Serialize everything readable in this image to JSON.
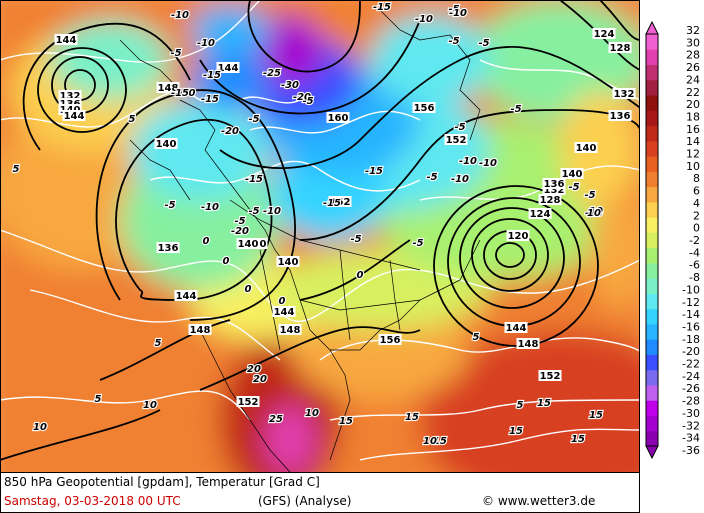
{
  "colors": {
    "scale": [
      "#8a00b0",
      "#a400d0",
      "#c000e8",
      "#c060f0",
      "#7a6cf0",
      "#3a50ff",
      "#1e8cff",
      "#28b4ff",
      "#34d4ff",
      "#5ee8f0",
      "#7af0c8",
      "#86f0a0",
      "#a8f070",
      "#d8f060",
      "#f8f060",
      "#fcd050",
      "#f8a840",
      "#f08030",
      "#e86020",
      "#d84020",
      "#c02818",
      "#a81818",
      "#901010",
      "#a02040",
      "#c03070",
      "#e040b0",
      "#f060d0"
    ]
  },
  "legend": {
    "ticks": [
      "32",
      "30",
      "28",
      "26",
      "24",
      "22",
      "20",
      "18",
      "16",
      "14",
      "12",
      "10",
      "8",
      "6",
      "4",
      "2",
      "0",
      "-2",
      "-4",
      "-6",
      "-8",
      "-10",
      "-12",
      "-14",
      "-16",
      "-18",
      "-20",
      "-22",
      "-24",
      "-26",
      "-28",
      "-30",
      "-32",
      "-34",
      "-36"
    ]
  },
  "map": {
    "geopotential_labels": [
      {
        "text": "144"
      },
      {
        "text": "132"
      },
      {
        "text": "136"
      },
      {
        "text": "140"
      },
      {
        "text": "144"
      },
      {
        "text": "144"
      },
      {
        "text": "148"
      },
      {
        "text": "140"
      },
      {
        "text": "140"
      },
      {
        "text": "136"
      },
      {
        "text": "140"
      },
      {
        "text": "144"
      },
      {
        "text": "144"
      },
      {
        "text": "148"
      },
      {
        "text": "148"
      },
      {
        "text": "160"
      },
      {
        "text": "156"
      },
      {
        "text": "152"
      },
      {
        "text": "152"
      },
      {
        "text": "156"
      },
      {
        "text": "120"
      },
      {
        "text": "124"
      },
      {
        "text": "128"
      },
      {
        "text": "132"
      },
      {
        "text": "136"
      },
      {
        "text": "140"
      },
      {
        "text": "144"
      },
      {
        "text": "148"
      },
      {
        "text": "152"
      },
      {
        "text": "152"
      },
      {
        "text": "124"
      },
      {
        "text": "128"
      },
      {
        "text": "132"
      },
      {
        "text": "136"
      },
      {
        "text": "140"
      },
      {
        "text": "140"
      },
      {
        "text": "136"
      }
    ],
    "temperature_labels": [
      {
        "text": "-10"
      },
      {
        "text": "-10"
      },
      {
        "text": "-5"
      },
      {
        "text": "-15"
      },
      {
        "text": "-25"
      },
      {
        "text": "-30"
      },
      {
        "text": "-20"
      },
      {
        "text": "-15"
      },
      {
        "text": "-20"
      },
      {
        "text": "-5"
      },
      {
        "text": "-5"
      },
      {
        "text": "-10"
      },
      {
        "text": "-15"
      },
      {
        "text": "-5"
      },
      {
        "text": "-5"
      },
      {
        "text": "-10"
      },
      {
        "text": "-15"
      },
      {
        "text": "-5"
      },
      {
        "text": "-10"
      },
      {
        "text": "-10"
      },
      {
        "text": "-5"
      },
      {
        "text": "-5"
      },
      {
        "text": "-5"
      },
      {
        "text": "-10"
      },
      {
        "text": "-5"
      },
      {
        "text": "-10"
      },
      {
        "text": "-5"
      },
      {
        "text": "-10"
      },
      {
        "text": "-5"
      },
      {
        "text": "-15"
      },
      {
        "text": "-5"
      },
      {
        "text": "-10"
      },
      {
        "text": "-5"
      },
      {
        "text": "-5"
      },
      {
        "text": "0"
      },
      {
        "text": "0"
      },
      {
        "text": "0"
      },
      {
        "text": "0"
      },
      {
        "text": "0"
      },
      {
        "text": "0"
      },
      {
        "text": "5"
      },
      {
        "text": "5"
      },
      {
        "text": "5"
      },
      {
        "text": "5"
      },
      {
        "text": "10"
      },
      {
        "text": "10"
      },
      {
        "text": "10"
      },
      {
        "text": "10"
      },
      {
        "text": "15"
      },
      {
        "text": "15"
      },
      {
        "text": "15"
      },
      {
        "text": "15"
      },
      {
        "text": "15"
      },
      {
        "text": "15"
      },
      {
        "text": "15"
      },
      {
        "text": "20"
      },
      {
        "text": "20"
      },
      {
        "text": "25"
      },
      {
        "text": "5"
      },
      {
        "text": "5"
      },
      {
        "text": "10"
      },
      {
        "text": "10"
      },
      {
        "text": "-15"
      },
      {
        "text": "-5"
      },
      {
        "text": "-20"
      },
      {
        "text": "-15"
      }
    ]
  },
  "footer": {
    "title": "850 hPa Geopotential [gpdam], Temperatur [Grad C]",
    "date": "Samstag, 03-03-2018  00 UTC",
    "model": "(GFS)   (Analyse)",
    "copyright": "www.wetter3.de"
  }
}
